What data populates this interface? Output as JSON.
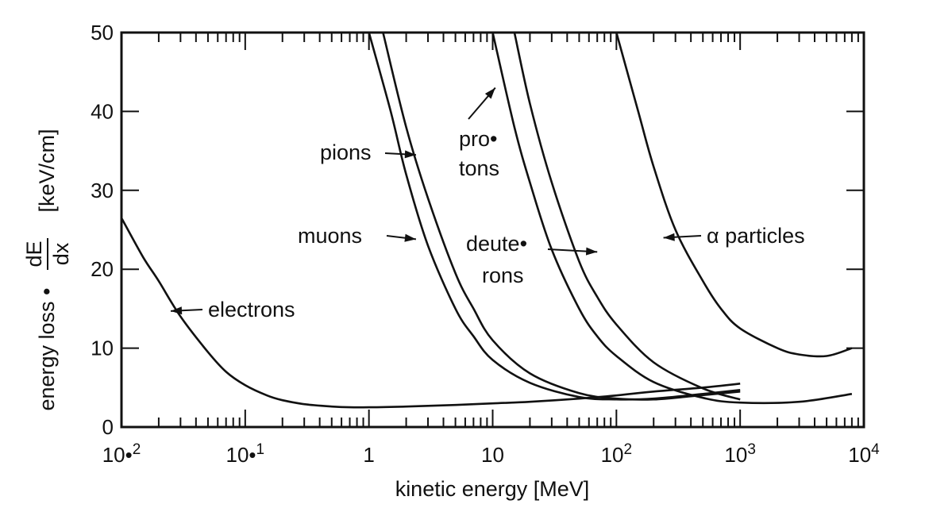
{
  "chart_data": {
    "type": "line",
    "title": "",
    "xlabel": "kinetic energy [MeV]",
    "ylabel_prefix": "energy loss •",
    "ylabel_fraction_num": "dE",
    "ylabel_fraction_den": "dx",
    "ylabel_units": "[keV/cm]",
    "x_scale": "log",
    "xlim": [
      0.01,
      10000
    ],
    "ylim": [
      0,
      50
    ],
    "x_tick_labels": [
      {
        "x": 0.01,
        "base": "10•",
        "exp": "2"
      },
      {
        "x": 0.1,
        "base": "10•",
        "exp": "1"
      },
      {
        "x": 1,
        "base": "1",
        "exp": ""
      },
      {
        "x": 10,
        "base": "10",
        "exp": ""
      },
      {
        "x": 100,
        "base": "10",
        "exp": "2"
      },
      {
        "x": 1000,
        "base": "10",
        "exp": "3"
      },
      {
        "x": 10000,
        "base": "10",
        "exp": "4"
      }
    ],
    "y_ticks": [
      0,
      10,
      20,
      30,
      40,
      50
    ],
    "y_tick_labels": [
      "0",
      "10",
      "20",
      "30",
      "40",
      "50"
    ],
    "grid": false,
    "series": [
      {
        "name": "electrons",
        "x": [
          0.01,
          0.015,
          0.02,
          0.03,
          0.05,
          0.07,
          0.1,
          0.15,
          0.2,
          0.3,
          0.5,
          0.7,
          1,
          2,
          5,
          10,
          20,
          50,
          100,
          200,
          500,
          1000
        ],
        "y": [
          26.5,
          21.5,
          18.5,
          14.0,
          9.5,
          7.0,
          5.3,
          4.0,
          3.4,
          2.9,
          2.6,
          2.5,
          2.5,
          2.6,
          2.8,
          3.0,
          3.2,
          3.6,
          4.0,
          4.5,
          5.0,
          5.5
        ]
      },
      {
        "name": "muons",
        "x": [
          1.0,
          1.5,
          2,
          3,
          5,
          7,
          10,
          20,
          50,
          100,
          200,
          500,
          1000
        ],
        "y": [
          50,
          40,
          32,
          23,
          15,
          11.5,
          8.5,
          5.6,
          3.8,
          3.5,
          3.6,
          4.2,
          4.7
        ]
      },
      {
        "name": "pions",
        "x": [
          1.3,
          2,
          3,
          5,
          7,
          10,
          20,
          50,
          100,
          200,
          400,
          1000
        ],
        "y": [
          50,
          38,
          29,
          19.5,
          15,
          11,
          6.8,
          4.3,
          3.6,
          3.5,
          3.9,
          4.5
        ]
      },
      {
        "name": "pro• tons",
        "x": [
          10,
          15,
          20,
          30,
          50,
          70,
          100,
          200,
          500,
          1000,
          3000,
          8000
        ],
        "y": [
          50,
          38,
          31,
          22.5,
          15,
          11.5,
          9,
          5.7,
          3.7,
          3.1,
          3.2,
          4.2
        ]
      },
      {
        "name": "deute• rons",
        "x": [
          15,
          20,
          30,
          50,
          70,
          100,
          200,
          500,
          1000
        ],
        "y": [
          50,
          41,
          31,
          21,
          16.5,
          13,
          8.2,
          4.9,
          3.5
        ]
      },
      {
        "name": "α particles",
        "x": [
          100,
          150,
          200,
          300,
          500,
          700,
          1000,
          2000,
          3000,
          5000,
          8000
        ],
        "y": [
          50,
          40,
          33,
          25,
          18.5,
          15,
          12.5,
          10,
          9.2,
          9.0,
          10.0
        ]
      }
    ],
    "annotations": [
      {
        "label": "electrons",
        "target_x": 0.025,
        "target_y": 14.7
      },
      {
        "label": "muons",
        "target_x": 2.4,
        "target_y": 23.8
      },
      {
        "label": "pions",
        "target_x": 2.4,
        "target_y": 34.5
      },
      {
        "label": "pro•",
        "label2": "tons",
        "target_x": 10.5,
        "target_y": 43.0
      },
      {
        "label": "deute•",
        "label2": "rons",
        "target_x": 70,
        "target_y": 22.2
      },
      {
        "label": "α particles",
        "target_x": 240,
        "target_y": 24.0
      }
    ]
  }
}
